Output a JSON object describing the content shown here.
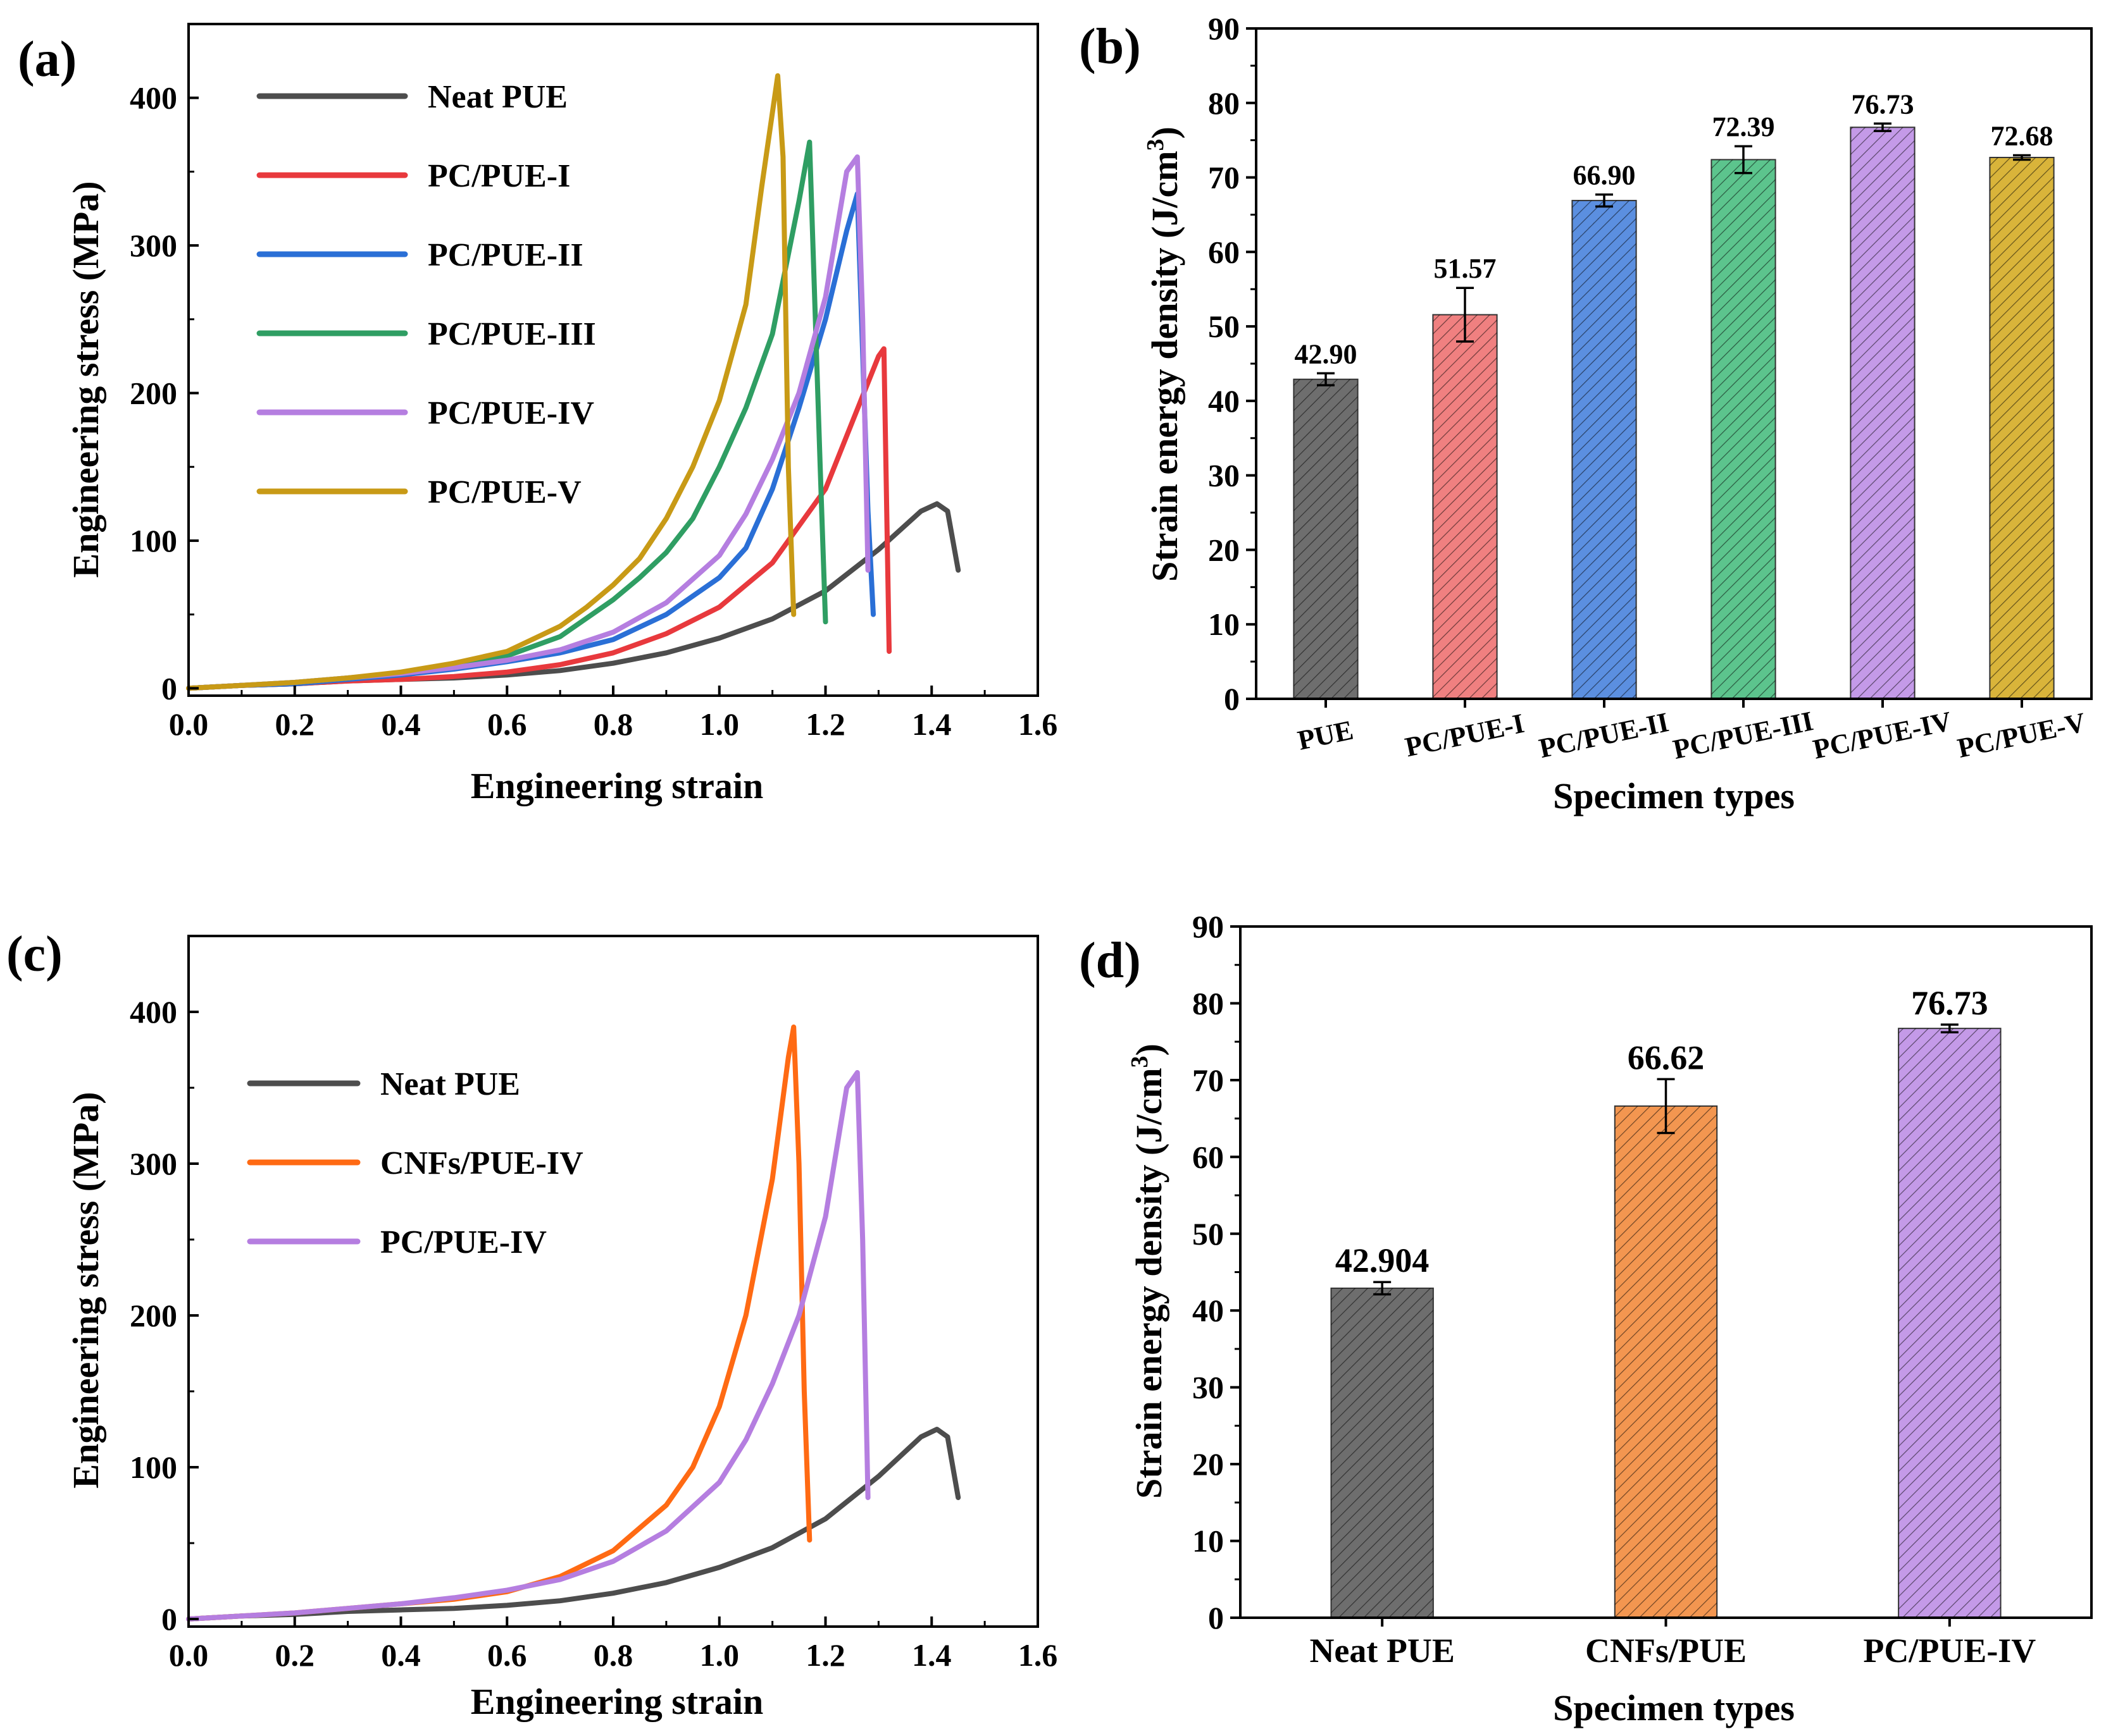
{
  "chart_data": [
    {
      "panel": "(a)",
      "type": "line",
      "xlabel": "Engineering strain",
      "ylabel": "Engineering stress (MPa)",
      "xlim": [
        0,
        1.6
      ],
      "ylim": [
        -5,
        450
      ],
      "xticks": [
        "0.0",
        "0.2",
        "0.4",
        "0.6",
        "0.8",
        "1.0",
        "1.2",
        "1.4",
        "1.6"
      ],
      "yticks": [
        "0",
        "100",
        "200",
        "300",
        "400"
      ],
      "legend_position": "top-left",
      "series": [
        {
          "name": "Neat PUE",
          "color": "#4d4d4d",
          "x": [
            0,
            0.1,
            0.2,
            0.3,
            0.4,
            0.5,
            0.6,
            0.7,
            0.8,
            0.9,
            1.0,
            1.1,
            1.2,
            1.3,
            1.38,
            1.41,
            1.43,
            1.45
          ],
          "y": [
            0,
            2,
            3,
            5,
            6,
            7,
            9,
            12,
            17,
            24,
            34,
            47,
            66,
            94,
            120,
            125,
            120,
            80
          ]
        },
        {
          "name": "PC/PUE-I",
          "color": "#e8393d",
          "x": [
            0,
            0.1,
            0.2,
            0.3,
            0.4,
            0.5,
            0.6,
            0.7,
            0.8,
            0.9,
            1.0,
            1.1,
            1.2,
            1.25,
            1.3,
            1.31,
            1.32
          ],
          "y": [
            0,
            2,
            3,
            5,
            6,
            8,
            11,
            16,
            24,
            37,
            55,
            85,
            135,
            180,
            225,
            230,
            25
          ]
        },
        {
          "name": "PC/PUE-II",
          "color": "#2a6fd6",
          "x": [
            0,
            0.1,
            0.2,
            0.3,
            0.4,
            0.5,
            0.6,
            0.7,
            0.8,
            0.9,
            1.0,
            1.05,
            1.1,
            1.15,
            1.2,
            1.24,
            1.26,
            1.28,
            1.29
          ],
          "y": [
            0,
            2,
            3,
            6,
            9,
            13,
            18,
            24,
            33,
            50,
            75,
            95,
            135,
            190,
            250,
            310,
            335,
            120,
            50
          ]
        },
        {
          "name": "PC/PUE-III",
          "color": "#2f9e63",
          "x": [
            0,
            0.1,
            0.2,
            0.3,
            0.4,
            0.5,
            0.6,
            0.7,
            0.8,
            0.85,
            0.9,
            0.95,
            1.0,
            1.05,
            1.1,
            1.15,
            1.17,
            1.19,
            1.2
          ],
          "y": [
            0,
            2,
            4,
            7,
            10,
            15,
            22,
            35,
            60,
            75,
            92,
            115,
            150,
            190,
            240,
            330,
            370,
            150,
            45
          ]
        },
        {
          "name": "PC/PUE-IV",
          "color": "#b57ee0",
          "x": [
            0,
            0.1,
            0.2,
            0.3,
            0.4,
            0.5,
            0.6,
            0.7,
            0.8,
            0.9,
            1.0,
            1.05,
            1.1,
            1.15,
            1.2,
            1.24,
            1.26,
            1.27,
            1.28
          ],
          "y": [
            0,
            2,
            4,
            7,
            10,
            14,
            19,
            26,
            38,
            58,
            90,
            118,
            155,
            200,
            265,
            350,
            360,
            250,
            80
          ]
        },
        {
          "name": "PC/PUE-V",
          "color": "#c89a16",
          "x": [
            0,
            0.1,
            0.2,
            0.3,
            0.4,
            0.5,
            0.6,
            0.7,
            0.75,
            0.8,
            0.85,
            0.9,
            0.95,
            1.0,
            1.05,
            1.08,
            1.11,
            1.12,
            1.13,
            1.14
          ],
          "y": [
            0,
            2,
            4,
            7,
            11,
            17,
            25,
            42,
            55,
            70,
            88,
            115,
            150,
            195,
            260,
            340,
            415,
            360,
            150,
            50
          ]
        }
      ]
    },
    {
      "panel": "(b)",
      "type": "bar",
      "xlabel": "Specimen types",
      "ylabel": "Strain energy density (J/cm",
      "ylabel_superscript": "3",
      "ylabel_close": ")",
      "ylim": [
        0,
        90
      ],
      "yticks": [
        "0",
        "10",
        "20",
        "30",
        "40",
        "50",
        "60",
        "70",
        "80",
        "90"
      ],
      "categories": [
        "PUE",
        "PC/PUE-I",
        "PC/PUE-II",
        "PC/PUE-III",
        "PC/PUE-IV",
        "PC/PUE-V"
      ],
      "values": [
        42.9,
        51.57,
        66.9,
        72.39,
        76.73,
        72.68
      ],
      "value_labels": [
        "42.90",
        "51.57",
        "66.90",
        "72.39",
        "76.73",
        "72.68"
      ],
      "errors": [
        0.8,
        3.6,
        0.8,
        1.8,
        0.5,
        0.3
      ],
      "colors": [
        "#6e6e6e",
        "#f08080",
        "#5b8fe0",
        "#5cc48d",
        "#c49ae8",
        "#d9b43a"
      ]
    },
    {
      "panel": "(c)",
      "type": "line",
      "xlabel": "Engineering strain",
      "ylabel": "Engineering stress (MPa)",
      "xlim": [
        0,
        1.6
      ],
      "ylim": [
        -5,
        450
      ],
      "xticks": [
        "0.0",
        "0.2",
        "0.4",
        "0.6",
        "0.8",
        "1.0",
        "1.2",
        "1.4",
        "1.6"
      ],
      "yticks": [
        "0",
        "100",
        "200",
        "300",
        "400"
      ],
      "legend_position": "center-left",
      "series": [
        {
          "name": "Neat PUE",
          "color": "#4d4d4d",
          "x": [
            0,
            0.1,
            0.2,
            0.3,
            0.4,
            0.5,
            0.6,
            0.7,
            0.8,
            0.9,
            1.0,
            1.1,
            1.2,
            1.3,
            1.38,
            1.41,
            1.43,
            1.45
          ],
          "y": [
            0,
            2,
            3,
            5,
            6,
            7,
            9,
            12,
            17,
            24,
            34,
            47,
            66,
            94,
            120,
            125,
            120,
            80
          ]
        },
        {
          "name": "CNFs/PUE-IV",
          "color": "#ff6a13",
          "x": [
            0,
            0.1,
            0.2,
            0.3,
            0.4,
            0.5,
            0.6,
            0.7,
            0.8,
            0.9,
            0.95,
            1.0,
            1.05,
            1.1,
            1.13,
            1.14,
            1.15,
            1.16,
            1.17
          ],
          "y": [
            0,
            2,
            4,
            7,
            10,
            13,
            18,
            28,
            45,
            75,
            100,
            140,
            200,
            290,
            370,
            390,
            300,
            150,
            52
          ]
        },
        {
          "name": "PC/PUE-IV",
          "color": "#b57ee0",
          "x": [
            0,
            0.1,
            0.2,
            0.3,
            0.4,
            0.5,
            0.6,
            0.7,
            0.8,
            0.9,
            1.0,
            1.05,
            1.1,
            1.15,
            1.2,
            1.24,
            1.26,
            1.27,
            1.28
          ],
          "y": [
            0,
            2,
            4,
            7,
            10,
            14,
            19,
            26,
            38,
            58,
            90,
            118,
            155,
            200,
            265,
            350,
            360,
            250,
            80
          ]
        }
      ]
    },
    {
      "panel": "(d)",
      "type": "bar",
      "xlabel": "Specimen types",
      "ylabel": "Strain energy density (J/cm",
      "ylabel_superscript": "3",
      "ylabel_close": ")",
      "ylim": [
        0,
        90
      ],
      "yticks": [
        "0",
        "10",
        "20",
        "30",
        "40",
        "50",
        "60",
        "70",
        "80",
        "90"
      ],
      "categories": [
        "Neat PUE",
        "CNFs/PUE",
        "PC/PUE-IV"
      ],
      "values": [
        42.904,
        66.62,
        76.73
      ],
      "value_labels": [
        "42.904",
        "66.62",
        "76.73"
      ],
      "errors": [
        0.8,
        3.5,
        0.5
      ],
      "colors": [
        "#6e6e6e",
        "#f39650",
        "#c49ae8"
      ]
    }
  ]
}
